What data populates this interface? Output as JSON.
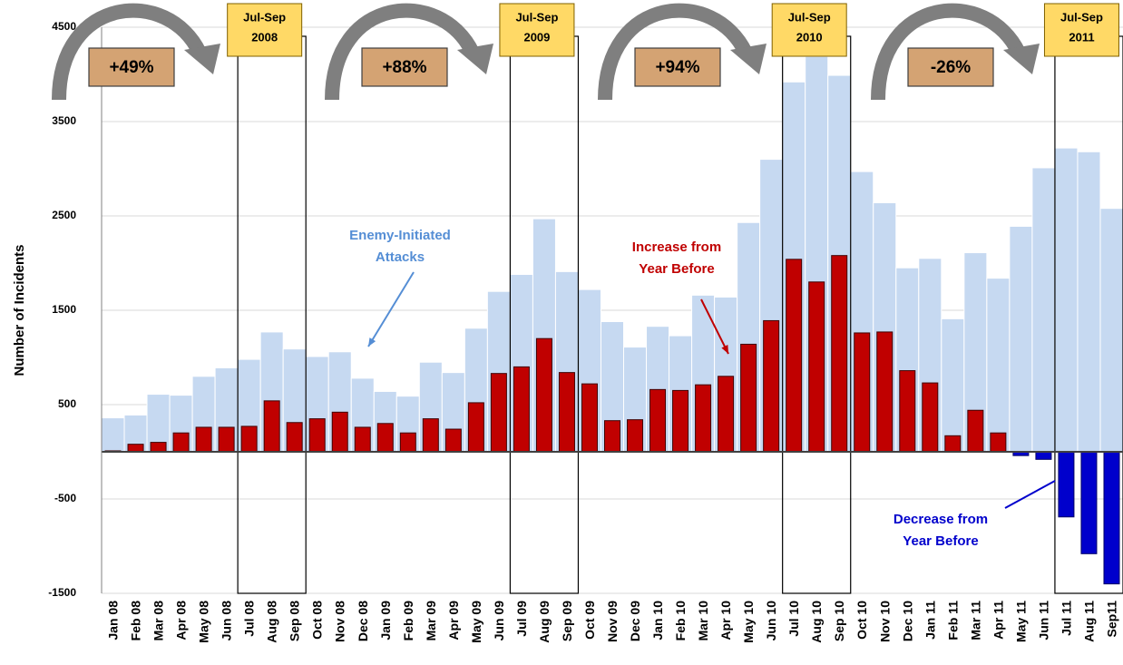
{
  "chart_data": {
    "type": "bar",
    "y_label": "Number of Incidents",
    "categories": [
      "Jan 08",
      "Feb 08",
      "Mar 08",
      "Apr 08",
      "May 08",
      "Jun 08",
      "Jul 08",
      "Aug 08",
      "Sep 08",
      "Oct 08",
      "Nov 08",
      "Dec 08",
      "Jan 09",
      "Feb 09",
      "Mar 09",
      "Apr 09",
      "May 09",
      "Jun 09",
      "Jul 09",
      "Aug 09",
      "Sep 09",
      "Oct 09",
      "Nov 09",
      "Dec 09",
      "Jan 10",
      "Feb 10",
      "Mar 10",
      "Apr 10",
      "May 10",
      "Jun 10",
      "Jul 10",
      "Aug 10",
      "Sep 10",
      "Oct 10",
      "Nov 10",
      "Dec 10",
      "Jan 11",
      "Feb 11",
      "Mar 11",
      "Apr 11",
      "May 11",
      "Jun 11",
      "Jul 11",
      "Aug 11",
      "Sep11"
    ],
    "series": [
      {
        "color": "#c6d9f1",
        "values": [
          360,
          390,
          610,
          600,
          800,
          890,
          980,
          1270,
          1090,
          1010,
          1060,
          780,
          640,
          590,
          950,
          840,
          1310,
          1700,
          1880,
          2470,
          1910,
          1720,
          1380,
          1110,
          1330,
          1230,
          1660,
          1640,
          2430,
          3100,
          3920,
          4190,
          3990,
          2970,
          2640,
          1950,
          2050,
          1410,
          2110,
          1840,
          2390,
          3010,
          3220,
          3180,
          2580
        ]
      },
      {
        "color": "#c00000",
        "negative_color": "#0000cc",
        "values": [
          10,
          80,
          100,
          200,
          260,
          260,
          270,
          540,
          310,
          350,
          420,
          260,
          300,
          200,
          350,
          240,
          520,
          830,
          900,
          1200,
          840,
          720,
          330,
          340,
          660,
          650,
          710,
          800,
          1140,
          1390,
          2040,
          1800,
          2080,
          1260,
          1270,
          860,
          730,
          170,
          440,
          200,
          -40,
          -80,
          -690,
          -1080,
          -1400
        ]
      }
    ],
    "ylim": [
      -1500,
      4500
    ],
    "yticks": [
      -1500,
      -500,
      500,
      1500,
      2500,
      3500,
      4500
    ],
    "grid": true,
    "periods": [
      {
        "label": [
          "Jul-Sep",
          "2008"
        ],
        "change": "+49%"
      },
      {
        "label": [
          "Jul-Sep",
          "2009"
        ],
        "change": "+88%"
      },
      {
        "label": [
          "Jul-Sep",
          "2010"
        ],
        "change": "+94%"
      },
      {
        "label": [
          "Jul-Sep",
          "2011"
        ],
        "change": "-26%"
      }
    ],
    "annotations": [
      {
        "lines": [
          "Enemy-Initiated",
          "Attacks"
        ],
        "color": "#558ed5"
      },
      {
        "lines": [
          "Increase from",
          "Year Before"
        ],
        "color": "#c00000"
      },
      {
        "lines": [
          "Decrease from",
          "Year Before"
        ],
        "color": "#0000cc"
      }
    ]
  }
}
